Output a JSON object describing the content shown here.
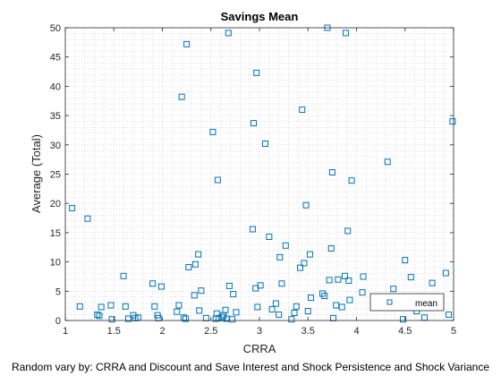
{
  "chart_data": {
    "type": "scatter",
    "title": "Savings Mean",
    "xlabel": "CRRA",
    "ylabel": "Average (Total)",
    "footer": "Random vary by: CRRA and Discount and Save Interest and Shock Persistence and Shock Variance",
    "xlim": [
      1,
      5
    ],
    "ylim": [
      0,
      50
    ],
    "xticks": [
      1,
      1.5,
      2,
      2.5,
      3,
      3.5,
      4,
      4.5,
      5
    ],
    "xtick_labels": [
      "1",
      "1.5",
      "2",
      "2.5",
      "3",
      "3.5",
      "4",
      "4.5",
      "5"
    ],
    "yticks": [
      0,
      5,
      10,
      15,
      20,
      25,
      30,
      35,
      40,
      45,
      50
    ],
    "ytick_labels": [
      "0",
      "5",
      "10",
      "15",
      "20",
      "25",
      "30",
      "35",
      "40",
      "45",
      "50"
    ],
    "grid": "minor-dotted",
    "legend_position": "bottom-right",
    "marker_color": "#0072BD",
    "marker": "square",
    "series": [
      {
        "name": "mean",
        "points": [
          [
            1.07,
            19.2
          ],
          [
            1.15,
            2.4
          ],
          [
            1.23,
            17.4
          ],
          [
            1.33,
            1.0
          ],
          [
            1.35,
            0.8
          ],
          [
            1.37,
            2.3
          ],
          [
            1.47,
            2.6
          ],
          [
            1.48,
            0.2
          ],
          [
            1.6,
            7.6
          ],
          [
            1.62,
            2.4
          ],
          [
            1.65,
            0.3
          ],
          [
            1.7,
            0.9
          ],
          [
            1.72,
            0.4
          ],
          [
            1.75,
            0.5
          ],
          [
            1.9,
            6.3
          ],
          [
            1.92,
            2.4
          ],
          [
            1.95,
            0.9
          ],
          [
            1.96,
            0.4
          ],
          [
            1.99,
            5.8
          ],
          [
            2.15,
            1.5
          ],
          [
            2.17,
            2.6
          ],
          [
            2.2,
            38.2
          ],
          [
            2.22,
            0.5
          ],
          [
            2.24,
            0.3
          ],
          [
            2.25,
            47.2
          ],
          [
            2.27,
            9.1
          ],
          [
            2.33,
            4.3
          ],
          [
            2.34,
            9.6
          ],
          [
            2.37,
            11.3
          ],
          [
            2.38,
            1.7
          ],
          [
            2.4,
            5.1
          ],
          [
            2.45,
            0.4
          ],
          [
            2.52,
            32.2
          ],
          [
            2.55,
            0.3
          ],
          [
            2.56,
            1.2
          ],
          [
            2.57,
            24.0
          ],
          [
            2.58,
            0.4
          ],
          [
            2.62,
            0.6
          ],
          [
            2.63,
            0.9
          ],
          [
            2.65,
            1.8
          ],
          [
            2.66,
            0.3
          ],
          [
            2.68,
            49.1
          ],
          [
            2.69,
            5.9
          ],
          [
            2.72,
            0.2
          ],
          [
            2.73,
            4.5
          ],
          [
            2.76,
            1.4
          ],
          [
            2.93,
            15.6
          ],
          [
            2.94,
            33.7
          ],
          [
            2.96,
            5.5
          ],
          [
            2.97,
            42.3
          ],
          [
            2.98,
            2.3
          ],
          [
            3.01,
            6.0
          ],
          [
            3.06,
            30.2
          ],
          [
            3.1,
            14.3
          ],
          [
            3.13,
            1.9
          ],
          [
            3.17,
            2.9
          ],
          [
            3.2,
            1.0
          ],
          [
            3.21,
            10.8
          ],
          [
            3.23,
            6.3
          ],
          [
            3.27,
            12.8
          ],
          [
            3.33,
            0.2
          ],
          [
            3.36,
            1.3
          ],
          [
            3.38,
            2.4
          ],
          [
            3.42,
            9.0
          ],
          [
            3.44,
            36.0
          ],
          [
            3.46,
            9.8
          ],
          [
            3.48,
            19.7
          ],
          [
            3.5,
            1.6
          ],
          [
            3.52,
            11.3
          ],
          [
            3.53,
            3.9
          ],
          [
            3.65,
            4.6
          ],
          [
            3.67,
            4.2
          ],
          [
            3.7,
            50.0
          ],
          [
            3.72,
            6.9
          ],
          [
            3.74,
            12.3
          ],
          [
            3.75,
            25.3
          ],
          [
            3.76,
            0.4
          ],
          [
            3.79,
            2.6
          ],
          [
            3.81,
            7.0
          ],
          [
            3.85,
            2.3
          ],
          [
            3.88,
            7.6
          ],
          [
            3.89,
            49.1
          ],
          [
            3.91,
            15.3
          ],
          [
            3.92,
            6.8
          ],
          [
            3.93,
            3.5
          ],
          [
            3.95,
            23.9
          ],
          [
            4.06,
            4.8
          ],
          [
            4.07,
            7.5
          ],
          [
            4.32,
            27.1
          ],
          [
            4.38,
            5.4
          ],
          [
            4.39,
            3.9
          ],
          [
            4.41,
            2.6
          ],
          [
            4.48,
            0.2
          ],
          [
            4.5,
            10.3
          ],
          [
            4.56,
            7.4
          ],
          [
            4.62,
            1.6
          ],
          [
            4.7,
            0.5
          ],
          [
            4.78,
            6.4
          ],
          [
            4.92,
            8.1
          ],
          [
            4.95,
            1.0
          ],
          [
            4.99,
            34.0
          ]
        ]
      }
    ]
  }
}
